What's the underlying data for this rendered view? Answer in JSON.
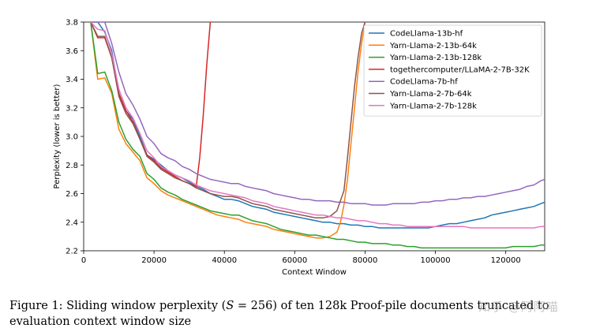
{
  "chart_data": {
    "type": "line",
    "title": "",
    "xlabel": "Context Window",
    "ylabel": "Perplexity (lower is better)",
    "xlim": [
      0,
      131072
    ],
    "ylim": [
      2.2,
      3.8
    ],
    "xticks": [
      0,
      20000,
      40000,
      60000,
      80000,
      100000,
      120000
    ],
    "xtick_labels": [
      "0",
      "20000",
      "40000",
      "60000",
      "80000",
      "100000",
      "120000"
    ],
    "yticks": [
      2.2,
      2.4,
      2.6,
      2.8,
      3.0,
      3.2,
      3.4,
      3.6,
      3.8
    ],
    "ytick_labels": [
      "2.2",
      "2.4",
      "2.6",
      "2.8",
      "3.0",
      "3.2",
      "3.4",
      "3.6",
      "3.8"
    ],
    "grid": false,
    "legend_position": "top-right",
    "series": [
      {
        "name": "CodeLlama-13b-hf",
        "color": "#1f77b4",
        "x": [
          2000,
          4000,
          6000,
          8000,
          10000,
          12000,
          14000,
          16000,
          18000,
          20000,
          22000,
          24000,
          26000,
          28000,
          30000,
          32000,
          34000,
          36000,
          38000,
          40000,
          42000,
          44000,
          46000,
          48000,
          50000,
          52000,
          54000,
          56000,
          58000,
          60000,
          62000,
          64000,
          66000,
          68000,
          70000,
          72000,
          74000,
          76000,
          78000,
          80000,
          82000,
          84000,
          86000,
          88000,
          90000,
          92000,
          94000,
          96000,
          98000,
          100000,
          102000,
          104000,
          106000,
          108000,
          110000,
          112000,
          114000,
          116000,
          118000,
          120000,
          122000,
          124000,
          126000,
          128000,
          130000,
          131072
        ],
        "y": [
          3.8,
          3.8,
          3.73,
          3.6,
          3.3,
          3.18,
          3.12,
          3.0,
          2.87,
          2.84,
          2.8,
          2.76,
          2.73,
          2.71,
          2.68,
          2.65,
          2.63,
          2.6,
          2.58,
          2.56,
          2.56,
          2.55,
          2.53,
          2.51,
          2.5,
          2.49,
          2.47,
          2.46,
          2.45,
          2.44,
          2.43,
          2.42,
          2.41,
          2.4,
          2.4,
          2.39,
          2.39,
          2.38,
          2.38,
          2.37,
          2.37,
          2.36,
          2.36,
          2.36,
          2.36,
          2.36,
          2.36,
          2.36,
          2.36,
          2.37,
          2.38,
          2.39,
          2.39,
          2.4,
          2.41,
          2.42,
          2.43,
          2.45,
          2.46,
          2.47,
          2.48,
          2.49,
          2.5,
          2.51,
          2.53,
          2.54
        ]
      },
      {
        "name": "Yarn-Llama-2-13b-64k",
        "color": "#ff7f0e",
        "x": [
          2000,
          4000,
          6000,
          8000,
          10000,
          12000,
          14000,
          16000,
          18000,
          20000,
          22000,
          24000,
          26000,
          28000,
          30000,
          32000,
          34000,
          36000,
          38000,
          40000,
          42000,
          44000,
          46000,
          48000,
          50000,
          52000,
          54000,
          56000,
          58000,
          60000,
          62000,
          64000,
          66000,
          68000,
          70000,
          72000,
          73000,
          74000,
          75000,
          76000,
          77000,
          78000,
          79000,
          80000,
          81000
        ],
        "y": [
          3.8,
          3.4,
          3.41,
          3.3,
          3.05,
          2.95,
          2.89,
          2.83,
          2.71,
          2.67,
          2.62,
          2.59,
          2.57,
          2.55,
          2.53,
          2.51,
          2.49,
          2.47,
          2.45,
          2.44,
          2.43,
          2.42,
          2.4,
          2.39,
          2.38,
          2.37,
          2.35,
          2.34,
          2.33,
          2.32,
          2.31,
          2.3,
          2.29,
          2.29,
          2.3,
          2.33,
          2.4,
          2.52,
          2.7,
          2.95,
          3.2,
          3.45,
          3.65,
          3.8,
          3.85
        ]
      },
      {
        "name": "Yarn-Llama-2-13b-128k",
        "color": "#2ca02c",
        "x": [
          2000,
          4000,
          6000,
          8000,
          10000,
          12000,
          14000,
          16000,
          18000,
          20000,
          22000,
          24000,
          26000,
          28000,
          30000,
          32000,
          34000,
          36000,
          38000,
          40000,
          42000,
          44000,
          46000,
          48000,
          50000,
          52000,
          54000,
          56000,
          58000,
          60000,
          62000,
          64000,
          66000,
          68000,
          70000,
          72000,
          74000,
          76000,
          78000,
          80000,
          82000,
          84000,
          86000,
          88000,
          90000,
          92000,
          94000,
          96000,
          98000,
          100000,
          102000,
          104000,
          106000,
          108000,
          110000,
          112000,
          114000,
          116000,
          118000,
          120000,
          122000,
          124000,
          126000,
          128000,
          130000,
          131072
        ],
        "y": [
          3.8,
          3.44,
          3.45,
          3.32,
          3.1,
          2.98,
          2.91,
          2.86,
          2.74,
          2.7,
          2.64,
          2.61,
          2.59,
          2.56,
          2.54,
          2.52,
          2.5,
          2.48,
          2.47,
          2.46,
          2.45,
          2.45,
          2.43,
          2.41,
          2.4,
          2.39,
          2.37,
          2.35,
          2.34,
          2.33,
          2.32,
          2.31,
          2.31,
          2.3,
          2.29,
          2.28,
          2.28,
          2.27,
          2.26,
          2.26,
          2.25,
          2.25,
          2.25,
          2.24,
          2.24,
          2.23,
          2.23,
          2.22,
          2.22,
          2.22,
          2.22,
          2.22,
          2.22,
          2.22,
          2.22,
          2.22,
          2.22,
          2.22,
          2.22,
          2.22,
          2.23,
          2.23,
          2.23,
          2.23,
          2.24,
          2.24
        ]
      },
      {
        "name": "togethercomputer/LLaMA-2-7B-32K",
        "color": "#d62728",
        "x": [
          2000,
          4000,
          6000,
          8000,
          10000,
          12000,
          14000,
          16000,
          18000,
          20000,
          22000,
          24000,
          26000,
          28000,
          30000,
          32000,
          33000,
          34000,
          35000,
          36000,
          37000
        ],
        "y": [
          3.8,
          3.69,
          3.69,
          3.55,
          3.3,
          3.18,
          3.1,
          2.98,
          2.87,
          2.83,
          2.78,
          2.75,
          2.72,
          2.69,
          2.67,
          2.65,
          2.85,
          3.15,
          3.5,
          3.8,
          3.9
        ]
      },
      {
        "name": "CodeLlama-7b-hf",
        "color": "#9467bd",
        "x": [
          2000,
          4000,
          6000,
          8000,
          10000,
          12000,
          14000,
          16000,
          18000,
          20000,
          22000,
          24000,
          26000,
          28000,
          30000,
          32000,
          34000,
          36000,
          38000,
          40000,
          42000,
          44000,
          46000,
          48000,
          50000,
          52000,
          54000,
          56000,
          58000,
          60000,
          62000,
          64000,
          66000,
          68000,
          70000,
          72000,
          74000,
          76000,
          78000,
          80000,
          82000,
          84000,
          86000,
          88000,
          90000,
          92000,
          94000,
          96000,
          98000,
          100000,
          102000,
          104000,
          106000,
          108000,
          110000,
          112000,
          114000,
          116000,
          118000,
          120000,
          122000,
          124000,
          126000,
          128000,
          130000,
          131072
        ],
        "y": [
          3.8,
          3.8,
          3.8,
          3.65,
          3.45,
          3.3,
          3.22,
          3.12,
          3.0,
          2.95,
          2.88,
          2.85,
          2.83,
          2.79,
          2.77,
          2.74,
          2.72,
          2.7,
          2.69,
          2.68,
          2.67,
          2.67,
          2.65,
          2.64,
          2.63,
          2.62,
          2.6,
          2.59,
          2.58,
          2.57,
          2.56,
          2.56,
          2.55,
          2.55,
          2.55,
          2.54,
          2.54,
          2.53,
          2.53,
          2.53,
          2.52,
          2.52,
          2.52,
          2.53,
          2.53,
          2.53,
          2.53,
          2.54,
          2.54,
          2.55,
          2.55,
          2.56,
          2.56,
          2.57,
          2.57,
          2.58,
          2.58,
          2.59,
          2.6,
          2.61,
          2.62,
          2.63,
          2.65,
          2.66,
          2.69,
          2.7
        ]
      },
      {
        "name": "Yarn-Llama-2-7b-64k",
        "color": "#8c564b",
        "x": [
          2000,
          4000,
          6000,
          8000,
          10000,
          12000,
          14000,
          16000,
          18000,
          20000,
          22000,
          24000,
          26000,
          28000,
          30000,
          32000,
          34000,
          36000,
          38000,
          40000,
          42000,
          44000,
          46000,
          48000,
          50000,
          52000,
          54000,
          56000,
          58000,
          60000,
          62000,
          64000,
          66000,
          68000,
          70000,
          72000,
          74000,
          75000,
          76000,
          77000,
          78000,
          79000,
          80000,
          81000
        ],
        "y": [
          3.8,
          3.7,
          3.7,
          3.55,
          3.28,
          3.16,
          3.09,
          2.98,
          2.86,
          2.82,
          2.77,
          2.74,
          2.71,
          2.69,
          2.67,
          2.64,
          2.62,
          2.6,
          2.59,
          2.58,
          2.58,
          2.57,
          2.55,
          2.53,
          2.52,
          2.51,
          2.49,
          2.48,
          2.47,
          2.46,
          2.45,
          2.44,
          2.43,
          2.43,
          2.44,
          2.48,
          2.62,
          2.85,
          3.1,
          3.35,
          3.55,
          3.72,
          3.8,
          3.85
        ]
      },
      {
        "name": "Yarn-Llama-2-7b-128k",
        "color": "#e377c2",
        "x": [
          2000,
          4000,
          6000,
          8000,
          10000,
          12000,
          14000,
          16000,
          18000,
          20000,
          22000,
          24000,
          26000,
          28000,
          30000,
          32000,
          34000,
          36000,
          38000,
          40000,
          42000,
          44000,
          46000,
          48000,
          50000,
          52000,
          54000,
          56000,
          58000,
          60000,
          62000,
          64000,
          66000,
          68000,
          70000,
          72000,
          74000,
          76000,
          78000,
          80000,
          82000,
          84000,
          86000,
          88000,
          90000,
          92000,
          94000,
          96000,
          98000,
          100000,
          102000,
          104000,
          106000,
          108000,
          110000,
          112000,
          114000,
          116000,
          118000,
          120000,
          122000,
          124000,
          126000,
          128000,
          130000,
          131072
        ],
        "y": [
          3.8,
          3.75,
          3.74,
          3.58,
          3.33,
          3.2,
          3.13,
          3.02,
          2.9,
          2.85,
          2.79,
          2.76,
          2.73,
          2.71,
          2.69,
          2.66,
          2.64,
          2.62,
          2.61,
          2.6,
          2.59,
          2.58,
          2.57,
          2.55,
          2.54,
          2.53,
          2.51,
          2.5,
          2.49,
          2.48,
          2.47,
          2.46,
          2.45,
          2.45,
          2.44,
          2.43,
          2.43,
          2.42,
          2.41,
          2.41,
          2.4,
          2.39,
          2.39,
          2.38,
          2.38,
          2.37,
          2.37,
          2.37,
          2.37,
          2.37,
          2.37,
          2.37,
          2.37,
          2.37,
          2.36,
          2.36,
          2.36,
          2.36,
          2.36,
          2.36,
          2.36,
          2.36,
          2.36,
          2.36,
          2.37,
          2.37
        ]
      }
    ]
  },
  "caption": {
    "prefix": "Figure 1: ",
    "text_a": "Sliding window perplexity (",
    "math_s": "S",
    "text_b": " = 256) of ten 128k Proof-pile documents truncated to evaluation context window size"
  },
  "watermark": {
    "text": "知乎 @阿阿喵"
  }
}
